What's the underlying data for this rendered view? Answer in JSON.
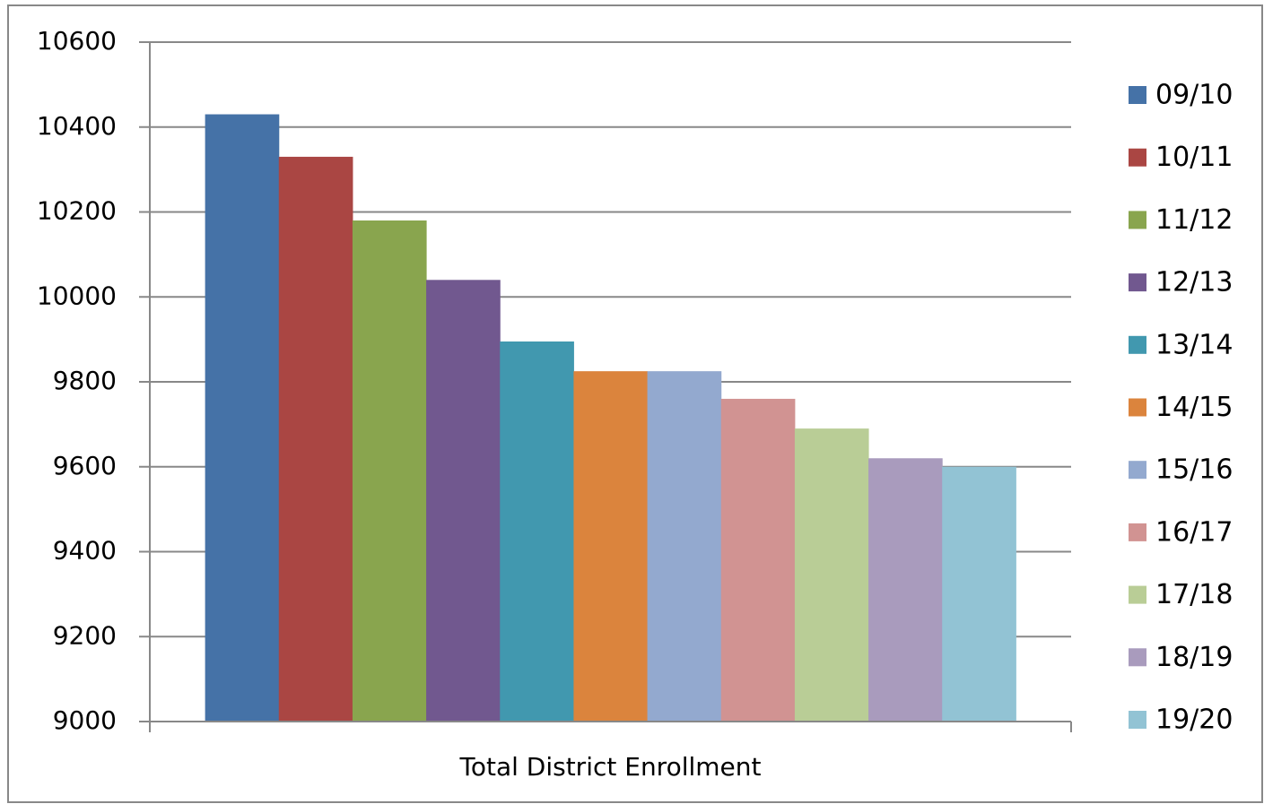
{
  "chart_data": {
    "type": "bar",
    "categories": [
      "Total District Enrollment"
    ],
    "series": [
      {
        "name": "09/10",
        "color": "#4572a7",
        "values": [
          10430
        ]
      },
      {
        "name": "10/11",
        "color": "#aa4643",
        "values": [
          10330
        ]
      },
      {
        "name": "11/12",
        "color": "#89a54e",
        "values": [
          10180
        ]
      },
      {
        "name": "12/13",
        "color": "#71588f",
        "values": [
          10040
        ]
      },
      {
        "name": "13/14",
        "color": "#4198af",
        "values": [
          9895
        ]
      },
      {
        "name": "14/15",
        "color": "#db843d",
        "values": [
          9825
        ]
      },
      {
        "name": "15/16",
        "color": "#93a9cf",
        "values": [
          9825
        ]
      },
      {
        "name": "16/17",
        "color": "#d19392",
        "values": [
          9760
        ]
      },
      {
        "name": "17/18",
        "color": "#b9cd96",
        "values": [
          9690
        ]
      },
      {
        "name": "18/19",
        "color": "#a99bbd",
        "values": [
          9620
        ]
      },
      {
        "name": "19/20",
        "color": "#92c3d4",
        "values": [
          9600
        ]
      }
    ],
    "ylim": [
      9000,
      10600
    ],
    "yticks": [
      9000,
      9200,
      9400,
      9600,
      9800,
      10000,
      10200,
      10400,
      10600
    ],
    "grid": true,
    "legend": "right"
  }
}
